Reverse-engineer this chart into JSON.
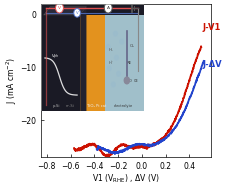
{
  "title": "",
  "xlabel": "V1 (V$_{\\mathrm{RHE}}$) , ΔV (V)",
  "ylabel": "J (mA cm$^{-2}$)",
  "xlim": [
    -0.85,
    0.58
  ],
  "ylim": [
    -27,
    2.0
  ],
  "xticks": [
    -0.8,
    -0.6,
    -0.4,
    -0.2,
    0.0,
    0.2,
    0.4
  ],
  "yticks": [
    0,
    -10,
    -20
  ],
  "red_label": "J-V1",
  "blue_label": "J-ΔV",
  "red_color": "#cc1100",
  "blue_color": "#2244cc",
  "inset_dark": "#1a1a25",
  "inset_orange": "#cc7722",
  "inset_blue": "#b8dde8",
  "wire_red": "#e05050",
  "wire_blue": "#5577cc",
  "wire_gray": "#888888"
}
